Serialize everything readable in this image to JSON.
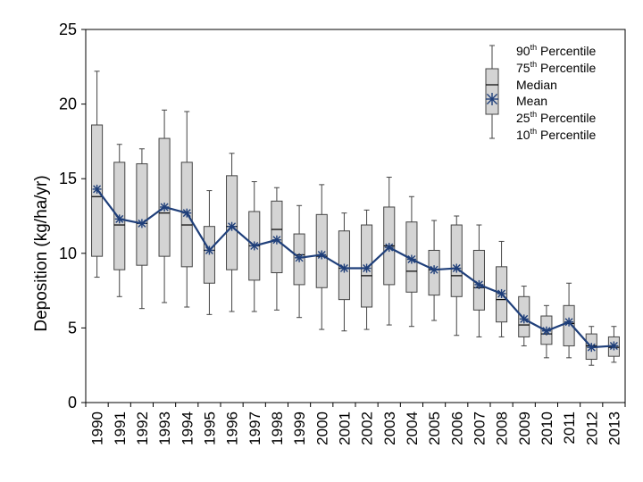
{
  "chart_data": {
    "type": "boxplot",
    "ylabel": "Deposition (kg/ha/yr)",
    "xlabel": "",
    "ylim": [
      0,
      25
    ],
    "yticks": [
      0,
      5,
      10,
      15,
      20,
      25
    ],
    "categories": [
      "1990",
      "1991",
      "1992",
      "1993",
      "1994",
      "1995",
      "1996",
      "1997",
      "1998",
      "1999",
      "2000",
      "2001",
      "2002",
      "2003",
      "2004",
      "2005",
      "2006",
      "2007",
      "2008",
      "2009",
      "2010",
      "2011",
      "2012",
      "2013"
    ],
    "series": {
      "p10": [
        8.4,
        7.1,
        6.3,
        6.7,
        6.4,
        5.9,
        6.1,
        6.1,
        6.2,
        5.7,
        4.9,
        4.8,
        4.9,
        5.2,
        5.1,
        5.5,
        4.5,
        4.4,
        4.4,
        3.8,
        3.0,
        3.0,
        2.5,
        2.7
      ],
      "p25": [
        9.8,
        8.9,
        9.2,
        9.8,
        9.1,
        8.0,
        8.9,
        8.2,
        8.7,
        7.9,
        7.7,
        6.9,
        6.4,
        7.9,
        7.4,
        7.2,
        7.1,
        6.2,
        5.4,
        4.4,
        3.9,
        3.8,
        2.9,
        3.1
      ],
      "median": [
        13.8,
        11.9,
        12.0,
        12.7,
        11.9,
        10.2,
        11.8,
        10.5,
        11.6,
        9.9,
        9.8,
        9.0,
        8.5,
        10.5,
        8.8,
        8.9,
        8.5,
        7.7,
        6.9,
        5.2,
        4.6,
        5.3,
        3.8,
        3.7
      ],
      "p75": [
        18.6,
        16.1,
        16.0,
        17.7,
        16.1,
        11.8,
        15.2,
        12.8,
        13.5,
        11.3,
        12.6,
        11.5,
        11.9,
        13.1,
        12.1,
        10.2,
        11.9,
        10.2,
        9.1,
        7.1,
        5.8,
        6.5,
        4.6,
        4.4
      ],
      "p90": [
        22.2,
        17.3,
        17.0,
        19.6,
        19.5,
        14.2,
        16.7,
        14.8,
        14.4,
        13.2,
        14.6,
        12.7,
        12.9,
        15.1,
        13.8,
        12.2,
        12.5,
        11.9,
        10.8,
        7.8,
        6.5,
        8.0,
        5.1,
        5.1
      ],
      "mean": [
        14.3,
        12.3,
        12.0,
        13.1,
        12.7,
        10.2,
        11.8,
        10.5,
        10.9,
        9.7,
        9.9,
        9.0,
        9.0,
        10.4,
        9.6,
        8.9,
        9.0,
        7.9,
        7.3,
        5.6,
        4.8,
        5.4,
        3.7,
        3.8
      ]
    },
    "legend": [
      {
        "label": "90",
        "sup": "th",
        "rest": " Percentile"
      },
      {
        "label": "75",
        "sup": "th",
        "rest": " Percentile"
      },
      {
        "label": "Median",
        "sup": "",
        "rest": ""
      },
      {
        "label": "Mean",
        "sup": "",
        "rest": ""
      },
      {
        "label": "25",
        "sup": "th",
        "rest": " Percentile"
      },
      {
        "label": "10",
        "sup": "th",
        "rest": " Percentile"
      }
    ],
    "legend_position": "top-right",
    "colors": {
      "box_fill": "#d4d4d4",
      "box_stroke": "#444444",
      "whisker": "#444444",
      "mean_line": "#1f3f7a",
      "axis": "#000000"
    }
  }
}
